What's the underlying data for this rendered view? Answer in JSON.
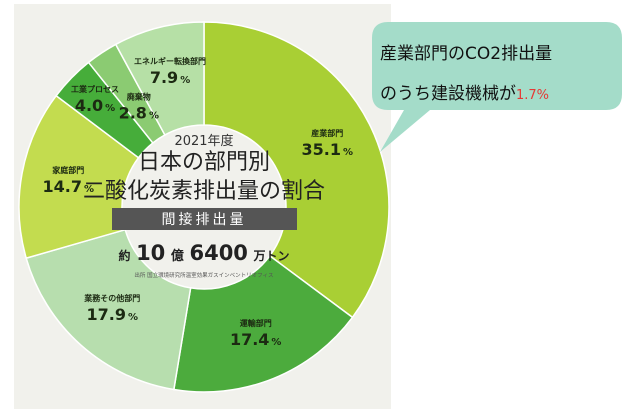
{
  "chart_data": {
    "type": "donut",
    "title": "日本の部門別 二酸化炭素排出量の割合",
    "year_label": "2021年度",
    "subtitle": "間接排出量",
    "total": {
      "prefix": "約",
      "num1": "10",
      "unit1": "億",
      "num2": "6400",
      "unit2": "万トン"
    },
    "source": "出所 国立環境研究所温室効果ガスインベントリオフィス",
    "categories": [
      "産業部門",
      "運輸部門",
      "業務その他部門",
      "家庭部門",
      "工業プロセス",
      "廃棄物",
      "エネルギー転換部門"
    ],
    "values": [
      35.1,
      17.4,
      17.9,
      14.7,
      4.0,
      2.8,
      7.9
    ],
    "value_labels": [
      "35.1",
      "17.4",
      "17.9",
      "14.7",
      "4.0",
      "2.8",
      "7.9"
    ],
    "unit": "%",
    "colors": [
      "#a9cf34",
      "#4cab3d",
      "#b7deae",
      "#c3dc4f",
      "#46ad3a",
      "#8bcb72",
      "#b6e0a6"
    ],
    "start_angle_deg": 0
  },
  "callout": {
    "line1": "産業部門のCO2排出量",
    "line2": "のうち建設機械が",
    "highlight": "1.7%",
    "bg_color": "#a4dcc9"
  }
}
